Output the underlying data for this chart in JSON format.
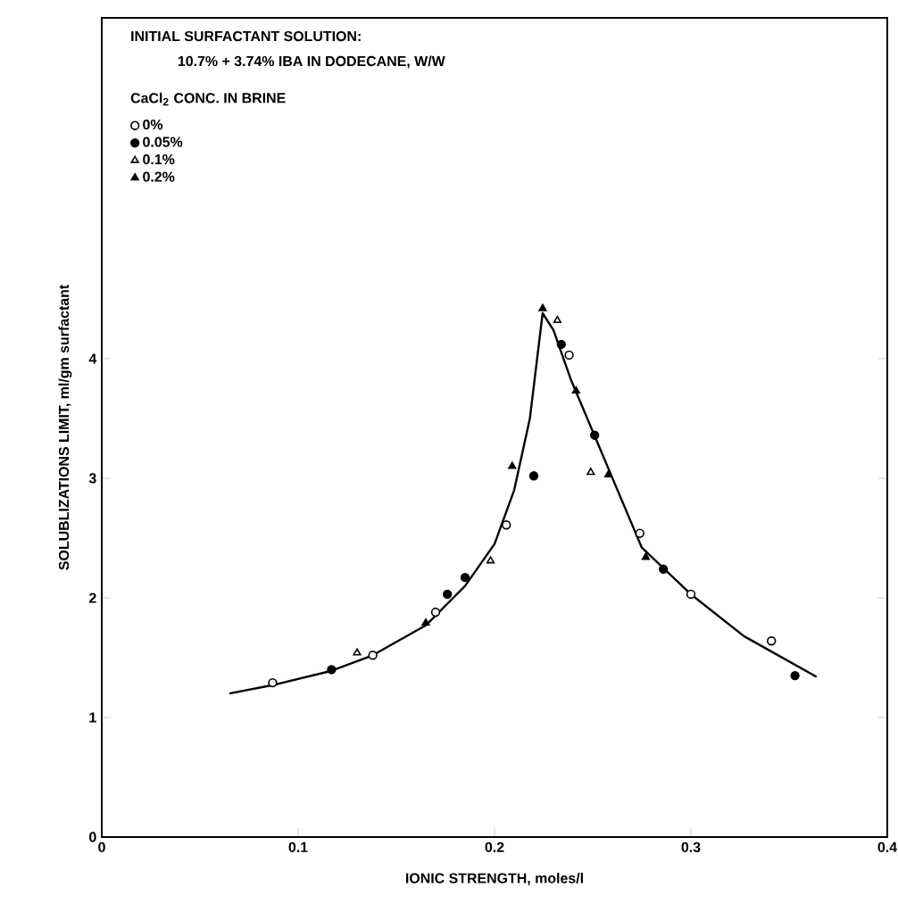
{
  "chart_data": {
    "type": "scatter",
    "title": "INITIAL SURFACTANT SOLUTION:",
    "subtitle": "10.7% + 3.74% IBA IN DODECANE, W/W",
    "xlabel": "IONIC STRENGTH, moles/l",
    "ylabel": "SOLUBLIZATIONS LIMIT, ml/gm surfactant",
    "legend_title": "CaCl$_{2}$ CONC. IN BRINE",
    "xlim": [
      0,
      0.4
    ],
    "ylim": [
      0,
      6.85
    ],
    "xticks": [
      0,
      0.1,
      0.2,
      0.3,
      0.4
    ],
    "yticks": [
      0,
      1,
      2,
      3,
      4
    ],
    "legend": "top left",
    "grid": false,
    "series": [
      {
        "name": "0%",
        "color": "#ffffff",
        "marker": "circle",
        "x": [
          0.087,
          0.138,
          0.17,
          0.206,
          0.238,
          0.274,
          0.3,
          0.341
        ],
        "values": [
          1.29,
          1.52,
          1.88,
          2.61,
          4.03,
          2.54,
          2.03,
          1.64
        ]
      },
      {
        "name": "0.05%",
        "color": "#000000",
        "marker": "circle",
        "x": [
          0.117,
          0.176,
          0.185,
          0.22,
          0.234,
          0.251,
          0.286,
          0.353
        ],
        "values": [
          1.4,
          2.03,
          2.17,
          3.02,
          4.12,
          3.36,
          2.24,
          1.35
        ]
      },
      {
        "name": "0.1%",
        "color": "#ffffff",
        "marker": "triangle",
        "x": [
          0.13,
          0.198,
          0.232,
          0.249
        ],
        "values": [
          1.54,
          2.31,
          4.32,
          3.05
        ]
      },
      {
        "name": "0.2%",
        "color": "#000000",
        "marker": "triangle",
        "x": [
          0.165,
          0.209,
          0.2245,
          0.2415,
          0.258,
          0.277
        ],
        "values": [
          1.79,
          3.1,
          4.42,
          3.73,
          3.03,
          2.34
        ]
      },
      {
        "type": "line",
        "color": "#000000",
        "marker": "none",
        "line_style": "solid",
        "x": [
          0.065,
          0.087,
          0.117,
          0.138,
          0.165,
          0.185,
          0.2,
          0.21,
          0.218,
          0.2245,
          0.23,
          0.239,
          0.257,
          0.275,
          0.3,
          0.327,
          0.364
        ],
        "values": [
          1.2,
          1.27,
          1.39,
          1.52,
          1.77,
          2.1,
          2.45,
          2.9,
          3.5,
          4.38,
          4.24,
          3.82,
          3.12,
          2.42,
          2.03,
          1.68,
          1.34
        ]
      }
    ]
  }
}
